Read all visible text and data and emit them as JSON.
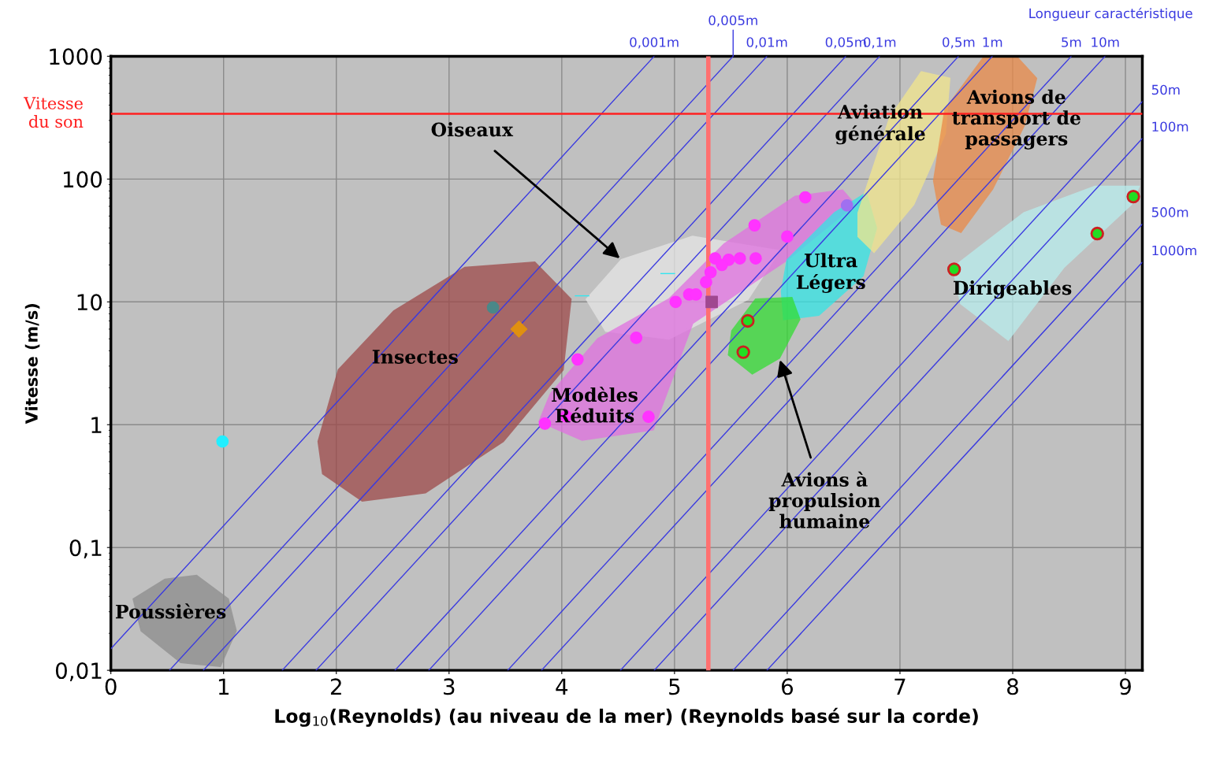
{
  "chart_data": {
    "type": "scatter",
    "xlabel": "Log$_{10}$(Reynolds) (au niveau de la mer) (Reynolds basé sur la corde)",
    "ylabel": "Vitesse (m/s)",
    "log": "y",
    "xlim": [
      0,
      9.15
    ],
    "ylim": [
      0.01,
      1000
    ],
    "xticks": [
      0,
      1,
      2,
      3,
      4,
      5,
      6,
      7,
      8,
      9
    ],
    "yticks": [
      {
        "value": 0.01,
        "label": "0,01"
      },
      {
        "value": 0.1,
        "label": "0,1"
      },
      1,
      10,
      100,
      1000
    ],
    "grid": true,
    "legend": false,
    "ref_lines": [
      {
        "axis": "y",
        "value": 340,
        "label": "Vitesse\ndu son",
        "color": "#ff2020"
      },
      {
        "axis": "x",
        "value": 5.3,
        "color": "#ff7070"
      }
    ],
    "series": [
      {
        "type": "area",
        "color": "#8c8c8c",
        "x": [
          0.2,
          0.48,
          0.76,
          1.04,
          1.11,
          0.97,
          0.62,
          0.27
        ],
        "values": [
          0.038,
          0.055,
          0.059,
          0.038,
          0.021,
          0.0108,
          0.0116,
          0.021
        ]
      },
      {
        "type": "area",
        "color": "#9e4a4a",
        "x": [
          1.84,
          2.02,
          2.51,
          3.14,
          3.76,
          4.08,
          4.01,
          3.48,
          2.79,
          2.23,
          1.88
        ],
        "values": [
          0.73,
          2.8,
          8.4,
          19,
          21,
          10.5,
          2.8,
          0.73,
          0.28,
          0.24,
          0.4
        ]
      },
      {
        "type": "area",
        "color": "#e6e6e6",
        "x": [
          4.22,
          4.53,
          5.16,
          5.93,
          5.65,
          4.95,
          4.39
        ],
        "values": [
          10.5,
          22,
          34,
          26,
          10.5,
          5.0,
          5.8
        ]
      },
      {
        "type": "area",
        "color": "#e070e0",
        "x": [
          3.8,
          3.9,
          4.32,
          4.95,
          5.44,
          6.07,
          6.49,
          6.6,
          6.0,
          5.16,
          4.81,
          4.18
        ],
        "values": [
          1.06,
          1.78,
          5.0,
          10.5,
          29.5,
          72,
          81,
          62,
          22,
          6.7,
          0.91,
          0.75
        ]
      },
      {
        "type": "area",
        "color": "#33e6e6",
        "x": [
          6.0,
          6.42,
          6.7,
          6.79,
          6.67,
          6.28,
          5.97,
          5.95
        ],
        "values": [
          22,
          53,
          77,
          40,
          16.3,
          7.8,
          7.2,
          12.2
        ]
      },
      {
        "type": "area",
        "color": "#33dd33",
        "x": [
          5.51,
          5.72,
          6.04,
          6.11,
          5.93,
          5.69,
          5.48
        ],
        "values": [
          5.8,
          10.5,
          10.8,
          7.2,
          3.5,
          2.6,
          3.7
        ]
      },
      {
        "type": "area",
        "color": "#f2e68c",
        "x": [
          6.63,
          6.91,
          7.19,
          7.44,
          7.4,
          7.12,
          6.77,
          6.63
        ],
        "values": [
          53,
          316,
          743,
          660,
          234,
          62,
          25.5,
          34
        ]
      },
      {
        "type": "area",
        "color": "#ea8a48",
        "x": [
          7.3,
          7.4,
          7.75,
          8.03,
          8.21,
          8.1,
          7.82,
          7.54,
          7.37
        ],
        "values": [
          97,
          366,
          1000,
          1000,
          660,
          272,
          83,
          37,
          43
        ]
      },
      {
        "type": "area",
        "color": "#b8eeee",
        "x": [
          7.47,
          8.1,
          8.73,
          9.12,
          9.05,
          8.45,
          7.96,
          7.54
        ],
        "values": [
          19,
          53,
          87,
          87,
          62,
          19,
          4.9,
          9.7
        ]
      },
      {
        "type": "line",
        "name": "0,001m",
        "color": "#3a3ae0",
        "x": [
          0,
          4.82
        ],
        "values": [
          0.015,
          1000
        ]
      },
      {
        "type": "line",
        "name": "0,005m",
        "color": "#3a3ae0",
        "x": [
          0.52,
          5.52
        ],
        "values": [
          0.01,
          1000
        ]
      },
      {
        "type": "line",
        "name": "0,01m",
        "color": "#3a3ae0",
        "x": [
          0.82,
          5.82
        ],
        "values": [
          0.01,
          1000
        ]
      },
      {
        "type": "line",
        "name": "0,05m",
        "color": "#3a3ae0",
        "x": [
          1.52,
          6.52
        ],
        "values": [
          0.01,
          1000
        ]
      },
      {
        "type": "line",
        "name": "0,1m",
        "color": "#3a3ae0",
        "x": [
          1.82,
          6.82
        ],
        "values": [
          0.01,
          1000
        ]
      },
      {
        "type": "line",
        "name": "0,5m",
        "color": "#3a3ae0",
        "x": [
          2.52,
          7.52
        ],
        "values": [
          0.01,
          1000
        ]
      },
      {
        "type": "line",
        "name": "1m",
        "color": "#3a3ae0",
        "x": [
          2.82,
          7.82
        ],
        "values": [
          0.01,
          1000
        ]
      },
      {
        "type": "line",
        "name": "5m",
        "color": "#3a3ae0",
        "x": [
          3.52,
          8.52
        ],
        "values": [
          0.01,
          1000
        ]
      },
      {
        "type": "line",
        "name": "10m",
        "color": "#3a3ae0",
        "x": [
          3.82,
          8.82
        ],
        "values": [
          0.01,
          1000
        ]
      },
      {
        "type": "line",
        "name": "50m",
        "color": "#3a3ae0",
        "x": [
          4.52,
          9.15
        ],
        "values": [
          0.01,
          427
        ]
      },
      {
        "type": "line",
        "name": "100m",
        "color": "#3a3ae0",
        "x": [
          4.82,
          9.15
        ],
        "values": [
          0.01,
          214
        ]
      },
      {
        "type": "line",
        "name": "500m",
        "color": "#3a3ae0",
        "x": [
          5.52,
          9.15
        ],
        "values": [
          0.01,
          43
        ]
      },
      {
        "type": "line",
        "name": "1000m",
        "color": "#3a3ae0",
        "x": [
          5.82,
          9.15
        ],
        "values": [
          0.01,
          21
        ]
      },
      {
        "type": "scatter",
        "marker": "circle",
        "color": "#ff33ff",
        "x": [
          6.16,
          5.71,
          6.0,
          5.36,
          5.48,
          5.58,
          5.72,
          5.42,
          5.32,
          5.28,
          5.13,
          5.19,
          5.01,
          4.66,
          4.14,
          4.04,
          3.85,
          4.77
        ],
        "values": [
          71,
          42,
          34,
          22.6,
          22,
          22.6,
          22.6,
          20,
          17.4,
          14.5,
          11.5,
          11.5,
          10,
          5.1,
          3.4,
          1.17,
          1.02,
          1.16
        ]
      },
      {
        "type": "scatter",
        "marker": "circle",
        "color": "#a070f0",
        "x": [
          6.53
        ],
        "values": [
          61
        ]
      },
      {
        "type": "scatter",
        "marker": "square",
        "color": "#a04890",
        "x": [
          5.33
        ],
        "values": [
          10
        ]
      },
      {
        "type": "scatter",
        "marker": "circle",
        "color": "#22dd22",
        "x": [
          5.65,
          5.61,
          7.48,
          8.75,
          9.07
        ],
        "values": [
          7.0,
          3.9,
          18.4,
          36,
          72
        ]
      },
      {
        "type": "scatter",
        "marker": "circle",
        "color": "#22eeff",
        "x": [
          0.99
        ],
        "values": [
          0.73
        ]
      },
      {
        "type": "scatter",
        "marker": "circle",
        "color": "#4a8888",
        "x": [
          3.39
        ],
        "values": [
          9.0
        ]
      },
      {
        "type": "scatter",
        "marker": "diamond",
        "color": "#e09010",
        "x": [
          3.62
        ],
        "values": [
          6.0
        ]
      },
      {
        "type": "line",
        "color": "#33e6f0",
        "x": [
          4.12,
          4.24
        ],
        "values": [
          11.2,
          11.2
        ]
      },
      {
        "type": "line",
        "color": "#33e6f0",
        "x": [
          4.88,
          5.0
        ],
        "values": [
          17,
          17
        ]
      }
    ],
    "annotations": [
      "Poussières",
      "Insectes",
      {
        "text": "Oiseaux",
        "x": 4.53,
        "y": 22
      },
      "Modèles\nRéduits",
      "Ultra\nLégers",
      {
        "text": "Avions à\npropulsion\nhumaine",
        "x": 5.93,
        "y": 3.5
      },
      "Aviation\ngénérale",
      "Avions de\ntransport de\npassagers",
      "Dirigeables",
      "Longueur caractéristique"
    ]
  }
}
